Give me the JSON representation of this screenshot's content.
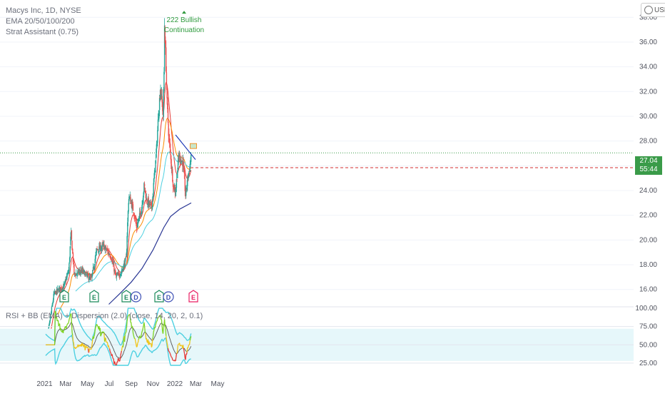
{
  "legend": {
    "line1": "Macys Inc, 1D, NYSE",
    "line2": "EMA 20/50/100/200",
    "line3": "Strat Assistant (0.75)"
  },
  "rsi_legend": "RSI + BB (EMA) + Dispersion (2.0) (close, 14, 20, 2, 0.1)",
  "currency": "USD",
  "last_price": "27.04",
  "countdown": "55:44",
  "colors": {
    "up": "#26a69a",
    "down": "#ef5350",
    "ema20": "#e53935",
    "ema50": "#fb8c00",
    "ema100": "#4dd0e1",
    "ema200": "#283593",
    "trend": "#1f3ab8",
    "green_text": "#2e9a3d"
  },
  "chart_data": [
    {
      "type": "candlestick",
      "title": "Macys Inc, 1D, NYSE",
      "x_ticks": [
        "2021",
        "Mar",
        "May",
        "Jul",
        "Sep",
        "Nov",
        "2022",
        "Mar",
        "May"
      ],
      "y_ticks": [
        "16.00",
        "18.00",
        "20.00",
        "22.00",
        "24.00",
        "26.00",
        "28.00",
        "30.00",
        "32.00",
        "34.00",
        "36.00",
        "38.00"
      ],
      "ylim": [
        14.6,
        39.4
      ],
      "price_path": [
        [
          "2021-01-04",
          11.2
        ],
        [
          "2021-01-27",
          15.6
        ],
        [
          "2021-02-10",
          16.0
        ],
        [
          "2021-02-24",
          16.2
        ],
        [
          "2021-03-10",
          17.6
        ],
        [
          "2021-03-16",
          20.6
        ],
        [
          "2021-03-25",
          17.2
        ],
        [
          "2021-04-15",
          17.5
        ],
        [
          "2021-05-12",
          16.8
        ],
        [
          "2021-05-27",
          19.2
        ],
        [
          "2021-06-15",
          19.5
        ],
        [
          "2021-07-06",
          18.7
        ],
        [
          "2021-07-20",
          17.0
        ],
        [
          "2021-08-04",
          17.4
        ],
        [
          "2021-08-18",
          18.5
        ],
        [
          "2021-08-20",
          20.3
        ],
        [
          "2021-08-25",
          23.6
        ],
        [
          "2021-09-08",
          22.3
        ],
        [
          "2021-09-16",
          21.0
        ],
        [
          "2021-09-30",
          22.6
        ],
        [
          "2021-10-07",
          24.4
        ],
        [
          "2021-10-14",
          23.2
        ],
        [
          "2021-10-28",
          22.6
        ],
        [
          "2021-11-10",
          27.0
        ],
        [
          "2021-11-17",
          30.6
        ],
        [
          "2021-11-22",
          32.3
        ],
        [
          "2021-11-29",
          30.2
        ],
        [
          "2021-12-02",
          33.8
        ],
        [
          "2021-12-03",
          37.6
        ],
        [
          "2021-12-08",
          33.5
        ],
        [
          "2021-12-10",
          31.2
        ],
        [
          "2021-12-15",
          28.4
        ],
        [
          "2021-12-21",
          26.5
        ],
        [
          "2021-12-28",
          24.3
        ],
        [
          "2022-01-03",
          23.9
        ],
        [
          "2022-01-12",
          26.8
        ],
        [
          "2022-01-24",
          26.2
        ],
        [
          "2022-01-31",
          23.6
        ],
        [
          "2022-02-07",
          25.2
        ],
        [
          "2022-02-11",
          25.7
        ],
        [
          "2022-02-16",
          27.04
        ]
      ],
      "ema200_path": [
        [
          "2021-06-30",
          14.8
        ],
        [
          "2021-08-01",
          15.7
        ],
        [
          "2021-09-01",
          16.6
        ],
        [
          "2021-10-01",
          17.7
        ],
        [
          "2021-11-01",
          19.2
        ],
        [
          "2021-12-01",
          21.0
        ],
        [
          "2021-12-20",
          21.9
        ],
        [
          "2022-01-15",
          22.5
        ],
        [
          "2022-02-16",
          23.0
        ]
      ],
      "trendline": [
        [
          "2022-01-03",
          28.5
        ],
        [
          "2022-02-28",
          26.5
        ]
      ],
      "hlines": [
        {
          "value": 27.04,
          "style": "dotted",
          "color": "#3a9b49"
        },
        {
          "value": 25.85,
          "style": "dashed",
          "color": "#d32f2f",
          "from": "2022-02-14"
        }
      ],
      "annotations": [
        {
          "text": "222 Bullish",
          "date": "2022-01-27",
          "value": 37.6
        },
        {
          "text": "Continuation",
          "date": "2022-01-27",
          "value": 36.8
        }
      ],
      "events": [
        {
          "label": "E",
          "date": "2021-02-25",
          "kind": "earnings"
        },
        {
          "label": "E",
          "date": "2021-05-20",
          "kind": "earnings"
        },
        {
          "label": "E",
          "date": "2021-08-18",
          "kind": "earnings"
        },
        {
          "label": "D",
          "date": "2021-09-14",
          "kind": "dividend"
        },
        {
          "label": "E",
          "date": "2021-11-18",
          "kind": "earnings"
        },
        {
          "label": "D",
          "date": "2021-12-14",
          "kind": "dividend"
        },
        {
          "label": "E",
          "date": "2022-02-22",
          "kind": "earnings-upcoming"
        }
      ]
    },
    {
      "type": "line",
      "title": "RSI + BB (EMA) + Dispersion (2.0) (close, 14, 20, 2, 0.1)",
      "y_ticks": [
        "25.00",
        "50.00",
        "75.00",
        "100.00"
      ],
      "ylim": [
        22,
        102
      ]
    }
  ]
}
